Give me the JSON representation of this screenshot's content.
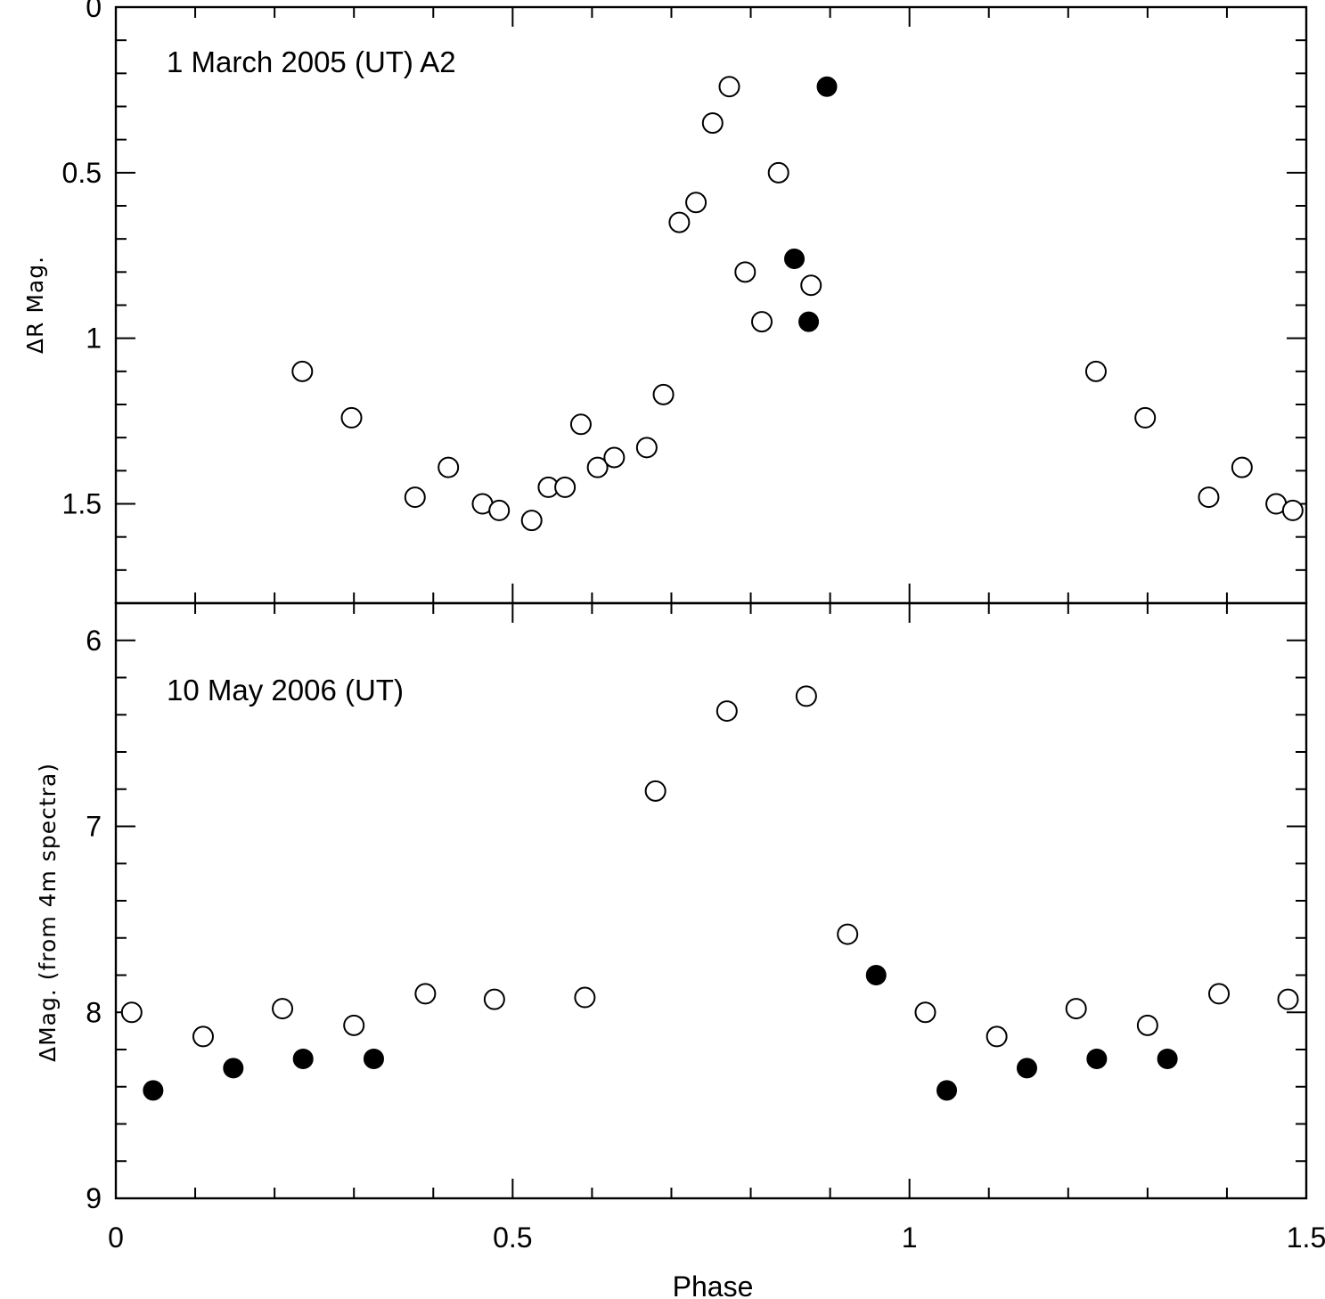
{
  "chart_data": [
    {
      "type": "scatter",
      "panel": "top",
      "label": "1 March 2005 (UT) A2",
      "ylabel": "ΔR Mag.",
      "xlabel": "",
      "xlim": [
        0,
        1.5
      ],
      "ylim": [
        0,
        1.8
      ],
      "y_inverted": true,
      "yticks": [
        0,
        0.5,
        1,
        1.5
      ],
      "ytick_labels": [
        "0",
        "0.5",
        "1",
        "1.5"
      ],
      "series": [
        {
          "name": "open",
          "marker": "open-circle",
          "x": [
            0.235,
            0.297,
            0.377,
            0.419,
            0.462,
            0.483,
            0.524,
            0.545,
            0.566,
            0.586,
            0.607,
            0.628,
            0.669,
            0.69,
            0.71,
            0.731,
            0.752,
            0.773,
            0.793,
            0.814,
            0.835,
            0.876,
            1.235,
            1.297,
            1.377,
            1.419,
            1.462,
            1.483
          ],
          "y": [
            1.1,
            1.24,
            1.48,
            1.39,
            1.5,
            1.52,
            1.55,
            1.45,
            1.45,
            1.26,
            1.39,
            1.36,
            1.33,
            1.17,
            0.65,
            0.59,
            0.35,
            0.24,
            0.8,
            0.95,
            0.5,
            0.84,
            1.1,
            1.24,
            1.48,
            1.39,
            1.5,
            1.52
          ]
        },
        {
          "name": "filled",
          "marker": "filled-circle",
          "x": [
            0.855,
            0.873,
            0.896
          ],
          "y": [
            0.76,
            0.95,
            0.24
          ]
        }
      ]
    },
    {
      "type": "scatter",
      "panel": "bottom",
      "label": "10 May 2006 (UT)",
      "ylabel": "ΔMag. (from 4m spectra)",
      "xlabel": "Phase",
      "xlim": [
        0,
        1.5
      ],
      "ylim": [
        5.8,
        9.0
      ],
      "y_inverted": true,
      "yticks": [
        6,
        7,
        8,
        9
      ],
      "ytick_labels": [
        "6",
        "7",
        "8",
        "9"
      ],
      "xticks": [
        0,
        0.5,
        1,
        1.5
      ],
      "xtick_labels": [
        "0",
        "0.5",
        "1",
        "1.5"
      ],
      "series": [
        {
          "name": "open",
          "marker": "open-circle",
          "x": [
            0.02,
            0.11,
            0.21,
            0.3,
            0.39,
            0.477,
            0.591,
            0.68,
            0.77,
            0.87,
            0.922,
            1.02,
            1.11,
            1.21,
            1.3,
            1.39,
            1.477
          ],
          "y": [
            8.0,
            8.13,
            7.98,
            8.07,
            7.9,
            7.93,
            7.92,
            6.81,
            6.38,
            6.3,
            7.58,
            8.0,
            8.13,
            7.98,
            8.07,
            7.9,
            7.93
          ]
        },
        {
          "name": "filled",
          "marker": "filled-circle",
          "x": [
            0.047,
            0.148,
            0.236,
            0.325,
            0.958,
            1.047,
            1.148,
            1.236,
            1.325
          ],
          "y": [
            8.42,
            8.3,
            8.25,
            8.25,
            7.8,
            8.42,
            8.3,
            8.25,
            8.25
          ]
        }
      ]
    }
  ]
}
